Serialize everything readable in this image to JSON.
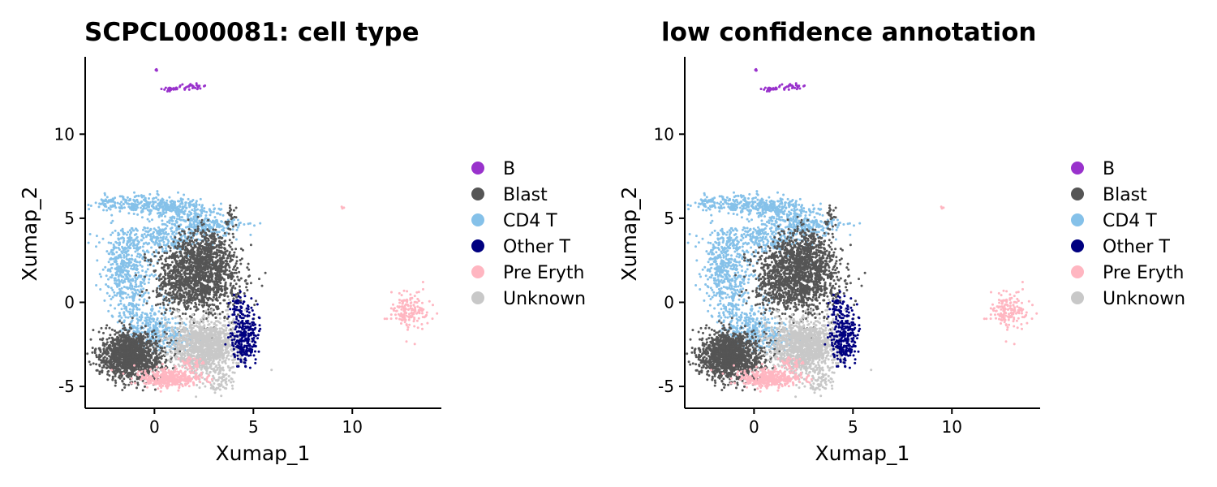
{
  "chart_data": [
    {
      "type": "scatter",
      "title": "SCPCL000081: cell type",
      "xlabel": "Xumap_1",
      "ylabel": "Xumap_2",
      "xlim": [
        -3.5,
        14.5
      ],
      "ylim": [
        -6.3,
        14.6
      ],
      "xticks": [
        0,
        5,
        10
      ],
      "yticks": [
        -5,
        0,
        5,
        10
      ],
      "grid": false,
      "legend_position": "right",
      "legend": [
        "B",
        "Blast",
        "CD4 T",
        "Other T",
        "Pre Eryth",
        "Unknown"
      ],
      "colors": {
        "B": "#9932CC",
        "Blast": "#555555",
        "CD4 T": "#85C1E9",
        "Other T": "#000080",
        "Pre Eryth": "#FFB6C1",
        "Unknown": "#C8C8C8"
      },
      "clusters": [
        {
          "series": "B",
          "center": [
            0.1,
            13.8
          ],
          "spread": [
            0.05,
            0.05
          ],
          "count": 6
        },
        {
          "series": "B",
          "center": [
            0.8,
            12.65
          ],
          "spread": [
            0.3,
            0.06
          ],
          "count": 25
        },
        {
          "series": "B",
          "center": [
            1.9,
            12.8
          ],
          "spread": [
            0.3,
            0.1
          ],
          "count": 30
        },
        {
          "series": "CD4 T",
          "center": [
            -2.5,
            6.0
          ],
          "spread": [
            0.2,
            0.2
          ],
          "count": 30
        },
        {
          "series": "CD4 T",
          "center": [
            -0.8,
            5.85
          ],
          "spread": [
            1.1,
            0.25
          ],
          "count": 220
        },
        {
          "series": "CD4 T",
          "center": [
            1.3,
            5.5
          ],
          "spread": [
            0.9,
            0.35
          ],
          "count": 200
        },
        {
          "series": "CD4 T",
          "center": [
            2.5,
            4.6
          ],
          "spread": [
            1.0,
            0.35
          ],
          "count": 220
        },
        {
          "series": "CD4 T",
          "center": [
            0.5,
            3.8
          ],
          "spread": [
            1.2,
            0.5
          ],
          "count": 240
        },
        {
          "series": "CD4 T",
          "center": [
            -1.5,
            2.8
          ],
          "spread": [
            0.6,
            0.9
          ],
          "count": 240
        },
        {
          "series": "CD4 T",
          "center": [
            -1.2,
            0.8
          ],
          "spread": [
            0.6,
            1.0
          ],
          "count": 260
        },
        {
          "series": "CD4 T",
          "center": [
            -0.3,
            -1.3
          ],
          "spread": [
            0.7,
            0.6
          ],
          "count": 220
        },
        {
          "series": "CD4 T",
          "center": [
            0.8,
            -2.2
          ],
          "spread": [
            0.6,
            0.4
          ],
          "count": 120
        },
        {
          "series": "Blast",
          "center": [
            2.2,
            1.5
          ],
          "spread": [
            1.05,
            1.1
          ],
          "count": 1500
        },
        {
          "series": "Blast",
          "center": [
            2.5,
            3.2
          ],
          "spread": [
            0.6,
            0.6
          ],
          "count": 220
        },
        {
          "series": "Blast",
          "center": [
            3.9,
            5.0
          ],
          "spread": [
            0.15,
            0.3
          ],
          "count": 25
        },
        {
          "series": "Blast",
          "center": [
            -1.2,
            -3.2
          ],
          "spread": [
            0.8,
            0.7
          ],
          "count": 1400
        },
        {
          "series": "Unknown",
          "center": [
            2.6,
            -2.6
          ],
          "spread": [
            0.85,
            0.8
          ],
          "count": 1300
        },
        {
          "series": "Unknown",
          "center": [
            3.4,
            -4.7
          ],
          "spread": [
            0.3,
            0.4
          ],
          "count": 60
        },
        {
          "series": "Other T",
          "center": [
            4.6,
            -2.0
          ],
          "spread": [
            0.35,
            0.9
          ],
          "count": 260
        },
        {
          "series": "Other T",
          "center": [
            4.2,
            -0.2
          ],
          "spread": [
            0.2,
            0.4
          ],
          "count": 40
        },
        {
          "series": "Pre Eryth",
          "center": [
            0.8,
            -4.5
          ],
          "spread": [
            0.8,
            0.25
          ],
          "count": 380
        },
        {
          "series": "Pre Eryth",
          "center": [
            1.9,
            -3.6
          ],
          "spread": [
            0.3,
            0.2
          ],
          "count": 40
        },
        {
          "series": "Pre Eryth",
          "center": [
            9.5,
            5.6
          ],
          "spread": [
            0.05,
            0.05
          ],
          "count": 4
        },
        {
          "series": "Pre Eryth",
          "center": [
            12.9,
            -0.4
          ],
          "spread": [
            0.45,
            0.6
          ],
          "count": 160
        }
      ]
    },
    {
      "type": "scatter",
      "title": "low confidence annotation",
      "xlabel": "Xumap_1",
      "ylabel": "Xumap_2",
      "xlim": [
        -3.5,
        14.5
      ],
      "ylim": [
        -6.3,
        14.6
      ],
      "xticks": [
        0,
        5,
        10
      ],
      "yticks": [
        -5,
        0,
        5,
        10
      ],
      "grid": false,
      "legend_position": "right",
      "legend": [
        "B",
        "Blast",
        "CD4 T",
        "Other T",
        "Pre Eryth",
        "Unknown"
      ],
      "colors": {
        "B": "#9932CC",
        "Blast": "#555555",
        "CD4 T": "#85C1E9",
        "Other T": "#000080",
        "Pre Eryth": "#FFB6C1",
        "Unknown": "#C8C8C8"
      },
      "clusters": [
        {
          "series": "B",
          "center": [
            0.1,
            13.8
          ],
          "spread": [
            0.05,
            0.05
          ],
          "count": 6
        },
        {
          "series": "B",
          "center": [
            0.8,
            12.65
          ],
          "spread": [
            0.3,
            0.06
          ],
          "count": 25
        },
        {
          "series": "B",
          "center": [
            1.9,
            12.8
          ],
          "spread": [
            0.3,
            0.1
          ],
          "count": 30
        },
        {
          "series": "CD4 T",
          "center": [
            -2.5,
            6.0
          ],
          "spread": [
            0.2,
            0.2
          ],
          "count": 30
        },
        {
          "series": "CD4 T",
          "center": [
            -0.8,
            5.85
          ],
          "spread": [
            1.1,
            0.25
          ],
          "count": 220
        },
        {
          "series": "CD4 T",
          "center": [
            1.3,
            5.5
          ],
          "spread": [
            0.9,
            0.35
          ],
          "count": 200
        },
        {
          "series": "CD4 T",
          "center": [
            2.5,
            4.6
          ],
          "spread": [
            1.0,
            0.35
          ],
          "count": 220
        },
        {
          "series": "CD4 T",
          "center": [
            0.5,
            3.8
          ],
          "spread": [
            1.2,
            0.5
          ],
          "count": 240
        },
        {
          "series": "CD4 T",
          "center": [
            -1.5,
            2.8
          ],
          "spread": [
            0.6,
            0.9
          ],
          "count": 240
        },
        {
          "series": "CD4 T",
          "center": [
            -1.2,
            0.8
          ],
          "spread": [
            0.6,
            1.0
          ],
          "count": 260
        },
        {
          "series": "CD4 T",
          "center": [
            -0.3,
            -1.3
          ],
          "spread": [
            0.7,
            0.6
          ],
          "count": 220
        },
        {
          "series": "CD4 T",
          "center": [
            0.8,
            -2.2
          ],
          "spread": [
            0.6,
            0.4
          ],
          "count": 120
        },
        {
          "series": "Blast",
          "center": [
            2.2,
            1.5
          ],
          "spread": [
            1.05,
            1.1
          ],
          "count": 1500
        },
        {
          "series": "Blast",
          "center": [
            2.5,
            3.2
          ],
          "spread": [
            0.6,
            0.6
          ],
          "count": 220
        },
        {
          "series": "Blast",
          "center": [
            3.9,
            5.0
          ],
          "spread": [
            0.15,
            0.3
          ],
          "count": 25
        },
        {
          "series": "Blast",
          "center": [
            -1.2,
            -3.2
          ],
          "spread": [
            0.8,
            0.7
          ],
          "count": 1400
        },
        {
          "series": "Unknown",
          "center": [
            2.6,
            -2.6
          ],
          "spread": [
            0.85,
            0.8
          ],
          "count": 1300
        },
        {
          "series": "Unknown",
          "center": [
            3.4,
            -4.7
          ],
          "spread": [
            0.3,
            0.4
          ],
          "count": 60
        },
        {
          "series": "Other T",
          "center": [
            4.6,
            -2.0
          ],
          "spread": [
            0.35,
            0.9
          ],
          "count": 260
        },
        {
          "series": "Other T",
          "center": [
            4.2,
            -0.2
          ],
          "spread": [
            0.2,
            0.4
          ],
          "count": 40
        },
        {
          "series": "Pre Eryth",
          "center": [
            0.8,
            -4.5
          ],
          "spread": [
            0.8,
            0.25
          ],
          "count": 380
        },
        {
          "series": "Pre Eryth",
          "center": [
            1.9,
            -3.6
          ],
          "spread": [
            0.3,
            0.2
          ],
          "count": 40
        },
        {
          "series": "Pre Eryth",
          "center": [
            9.5,
            5.6
          ],
          "spread": [
            0.05,
            0.05
          ],
          "count": 4
        },
        {
          "series": "Pre Eryth",
          "center": [
            12.9,
            -0.4
          ],
          "spread": [
            0.45,
            0.6
          ],
          "count": 160
        }
      ]
    }
  ]
}
